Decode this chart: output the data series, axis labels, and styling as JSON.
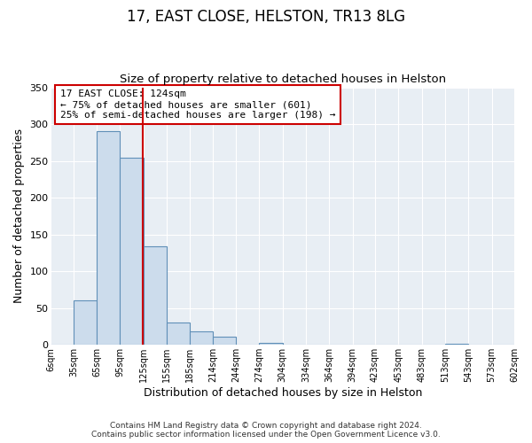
{
  "title": "17, EAST CLOSE, HELSTON, TR13 8LG",
  "subtitle": "Size of property relative to detached houses in Helston",
  "xlabel": "Distribution of detached houses by size in Helston",
  "ylabel": "Number of detached properties",
  "bin_edges": [
    6,
    35,
    65,
    95,
    125,
    155,
    185,
    214,
    244,
    274,
    304,
    334,
    364,
    394,
    423,
    453,
    483,
    513,
    543,
    573,
    602
  ],
  "bin_labels": [
    "6sqm",
    "35sqm",
    "65sqm",
    "95sqm",
    "125sqm",
    "155sqm",
    "185sqm",
    "214sqm",
    "244sqm",
    "274sqm",
    "304sqm",
    "334sqm",
    "364sqm",
    "394sqm",
    "423sqm",
    "453sqm",
    "483sqm",
    "513sqm",
    "543sqm",
    "573sqm",
    "602sqm"
  ],
  "counts": [
    0,
    61,
    291,
    254,
    134,
    30,
    18,
    11,
    0,
    3,
    0,
    0,
    0,
    0,
    0,
    0,
    0,
    1,
    0,
    0
  ],
  "bar_fill": "#ccdcec",
  "bar_edge": "#6090b8",
  "vline_x": 124,
  "vline_color": "#cc0000",
  "ylim": [
    0,
    350
  ],
  "yticks": [
    0,
    50,
    100,
    150,
    200,
    250,
    300,
    350
  ],
  "annotation_text": "17 EAST CLOSE: 124sqm\n← 75% of detached houses are smaller (601)\n25% of semi-detached houses are larger (198) →",
  "annotation_box_edgecolor": "#cc0000",
  "footer_line1": "Contains HM Land Registry data © Crown copyright and database right 2024.",
  "footer_line2": "Contains public sector information licensed under the Open Government Licence v3.0.",
  "plot_bg_color": "#e8eef4",
  "fig_bg_color": "#ffffff",
  "grid_color": "#ffffff",
  "figsize": [
    6.0,
    5.0
  ],
  "dpi": 100
}
